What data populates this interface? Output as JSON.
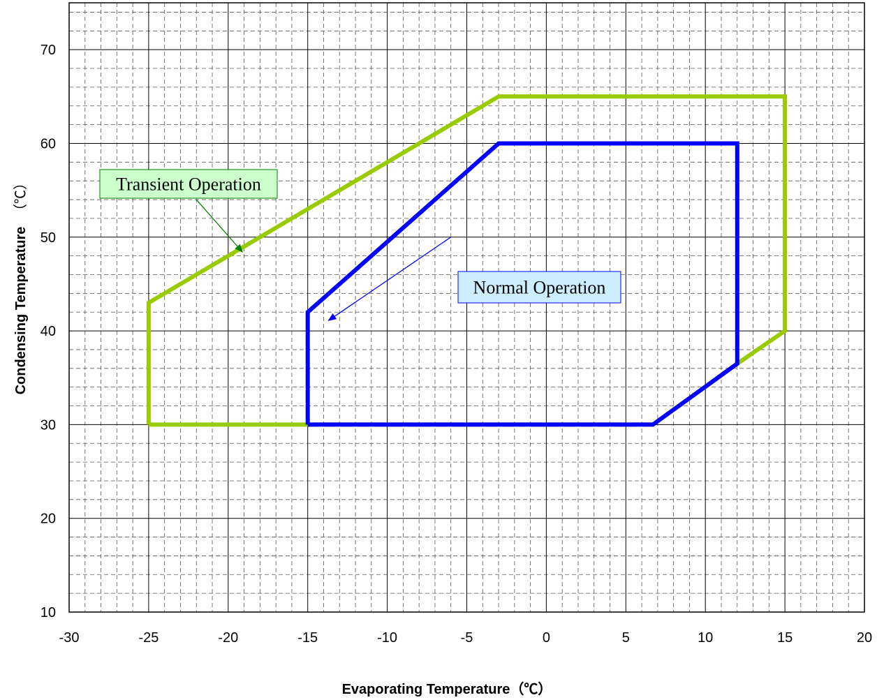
{
  "chart_data": {
    "type": "line",
    "xlabel": "Evaporating Temperature（℃）",
    "ylabel_main": "Condensing Temperature",
    "ylabel_unit": "（℃）",
    "xlim": [
      -30,
      20
    ],
    "ylim": [
      10,
      75
    ],
    "x_ticks": [
      "-30",
      "-25",
      "-20",
      "-15",
      "-10",
      "-5",
      "0",
      "5",
      "10",
      "15",
      "20"
    ],
    "y_ticks": [
      "10",
      "20",
      "30",
      "40",
      "50",
      "60",
      "70"
    ],
    "grid": true,
    "series": [
      {
        "name": "Transient Operation",
        "color": "#99cc00",
        "points": [
          [
            -25,
            30
          ],
          [
            -25,
            43
          ],
          [
            -3,
            65
          ],
          [
            15,
            65
          ],
          [
            15,
            40
          ],
          [
            12,
            36.5
          ],
          [
            6.7,
            30
          ],
          [
            -25,
            30
          ]
        ]
      },
      {
        "name": "Normal Operation",
        "color": "#0000ff",
        "points": [
          [
            -15,
            30
          ],
          [
            -15,
            42
          ],
          [
            -3,
            60
          ],
          [
            12,
            60
          ],
          [
            12,
            36.5
          ],
          [
            6.7,
            30
          ],
          [
            -15,
            30
          ]
        ]
      }
    ],
    "annotations": [
      {
        "text": "Transient Operation",
        "fill": "#ccffcc",
        "border": "#008000",
        "arrow_color": "#008000",
        "arrow_from": [
          -22,
          54
        ],
        "arrow_to": [
          -19.1,
          48.4
        ]
      },
      {
        "text": "Normal Operation",
        "fill": "#cceeff",
        "border": "#0000ff",
        "arrow_color": "#0000ff",
        "arrow_from": [
          -6,
          50
        ],
        "arrow_to": [
          -13.7,
          41.1
        ]
      }
    ]
  }
}
